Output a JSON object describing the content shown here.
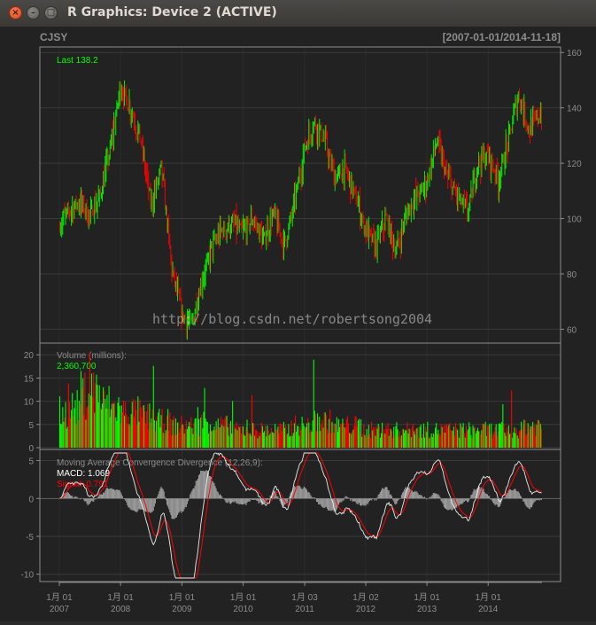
{
  "window": {
    "title": "R Graphics: Device 2 (ACTIVE)",
    "close_icon": "×",
    "min_icon": "–",
    "max_icon": "□"
  },
  "chart_data": {
    "type": "candlestick",
    "symbol": "CJSY",
    "date_range": "[2007-01-01/2014-11-18]",
    "last_label": "Last 138.2",
    "watermark": "http://blog.csdn.net/robertsong2004",
    "colors": {
      "up": "#00ff00",
      "down": "#ff0000",
      "background": "#222222",
      "grid": "#3a3a3a",
      "frame": "#8c8c8c",
      "text": "#8c8c8c"
    },
    "price": {
      "ylim": [
        55,
        162
      ],
      "yticks": [
        60,
        80,
        100,
        120,
        140,
        160
      ],
      "path_dates": [
        "2007-01",
        "2007-03",
        "2007-05",
        "2007-07",
        "2007-09",
        "2007-11",
        "2008-01",
        "2008-03",
        "2008-05",
        "2008-07",
        "2008-09",
        "2008-11",
        "2009-01",
        "2009-03",
        "2009-05",
        "2009-07",
        "2009-09",
        "2009-11",
        "2010-01",
        "2010-03",
        "2010-05",
        "2010-07",
        "2010-09",
        "2010-11",
        "2011-01",
        "2011-03",
        "2011-05",
        "2011-07",
        "2011-09",
        "2011-11",
        "2012-01",
        "2012-03",
        "2012-05",
        "2012-07",
        "2012-09",
        "2012-11",
        "2013-01",
        "2013-03",
        "2013-05",
        "2013-07",
        "2013-09",
        "2013-11",
        "2014-01",
        "2014-03",
        "2014-05",
        "2014-07",
        "2014-09",
        "2014-11"
      ],
      "path_values": [
        97,
        103,
        106,
        101,
        108,
        125,
        148,
        140,
        128,
        105,
        118,
        82,
        65,
        62,
        78,
        90,
        96,
        98,
        95,
        100,
        92,
        102,
        90,
        105,
        125,
        135,
        128,
        115,
        118,
        108,
        96,
        90,
        100,
        88,
        102,
        108,
        113,
        128,
        115,
        108,
        102,
        120,
        123,
        114,
        128,
        145,
        132,
        138
      ]
    },
    "volume": {
      "label": "Volume (millions):",
      "last": "2,360,700",
      "ylim": [
        0,
        21
      ],
      "yticks": [
        0,
        5,
        10,
        15,
        20
      ],
      "levels": [
        8,
        9,
        12,
        13,
        10,
        9,
        8,
        8,
        7,
        6,
        6,
        5,
        5,
        5,
        6,
        5,
        5,
        4,
        4,
        4,
        4,
        4,
        4,
        5,
        5,
        6,
        6,
        5,
        5,
        5,
        4,
        4,
        4,
        4,
        4,
        4,
        4,
        4,
        4,
        4,
        4,
        4,
        4,
        4,
        4,
        4,
        5,
        5
      ]
    },
    "macd": {
      "label": "Moving Average Convergence Divergence (12,26,9):",
      "macd_text": "MACD: 1.069",
      "signal_text": "Signal: 0.791",
      "ylim": [
        -10.5,
        6
      ],
      "yticks": [
        -10,
        -5,
        0,
        5
      ],
      "macd_color": "#ffffff",
      "signal_color": "#ff0000",
      "histogram_color": "#9a9a9a"
    },
    "x_axis": {
      "labels": [
        {
          "date": "2007-01-01",
          "line1": "1月 01",
          "line2": "2007"
        },
        {
          "date": "2008-01-01",
          "line1": "1月 01",
          "line2": "2008"
        },
        {
          "date": "2009-01-01",
          "line1": "1月 01",
          "line2": "2009"
        },
        {
          "date": "2010-01-01",
          "line1": "1月 01",
          "line2": "2010"
        },
        {
          "date": "2011-01-03",
          "line1": "1月 03",
          "line2": "2011"
        },
        {
          "date": "2012-01-02",
          "line1": "1月 02",
          "line2": "2012"
        },
        {
          "date": "2013-01-01",
          "line1": "1月 01",
          "line2": "2013"
        },
        {
          "date": "2014-01-01",
          "line1": "1月 01",
          "line2": "2014"
        }
      ]
    }
  }
}
